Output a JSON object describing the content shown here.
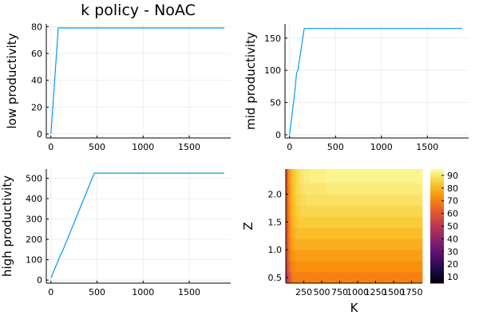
{
  "title": "k policy - NoAC",
  "colors": {
    "series": "#009af9"
  },
  "chart_data": [
    {
      "type": "line",
      "ylabel": "low productivity",
      "xlim": [
        -50,
        1950
      ],
      "ylim": [
        -3,
        82
      ],
      "xticks": [
        0,
        500,
        1000,
        1500
      ],
      "yticks": [
        0,
        20,
        40,
        60,
        80
      ],
      "grid": true,
      "series": [
        {
          "x": [
            0,
            80,
            1880
          ],
          "y": [
            0,
            79,
            79
          ]
        }
      ]
    },
    {
      "type": "line",
      "ylabel": "mid productivity",
      "xlim": [
        -50,
        1950
      ],
      "ylim": [
        -5,
        172
      ],
      "xticks": [
        0,
        500,
        1000,
        1500
      ],
      "yticks": [
        0,
        50,
        100,
        150
      ],
      "grid": true,
      "series": [
        {
          "x": [
            0,
            60,
            75,
            90,
            160,
            1880
          ],
          "y": [
            0,
            70,
            95,
            100,
            165,
            165
          ]
        }
      ]
    },
    {
      "type": "line",
      "ylabel": "high productivity",
      "xlim": [
        -50,
        1950
      ],
      "ylim": [
        -15,
        545
      ],
      "xticks": [
        0,
        500,
        1000,
        1500
      ],
      "yticks": [
        0,
        100,
        200,
        300,
        400,
        500
      ],
      "grid": true,
      "series": [
        {
          "x": [
            0,
            110,
            120,
            470,
            1880
          ],
          "y": [
            10,
            130,
            135,
            525,
            525
          ]
        }
      ]
    },
    {
      "type": "heatmap",
      "xlabel": "K",
      "ylabel": "Z",
      "xticks": [
        250,
        500,
        750,
        1000,
        1250,
        1500,
        1750
      ],
      "yticks": [
        0.5,
        1.0,
        1.5,
        2.0
      ],
      "ytick_labels": [
        "0.5",
        "1.0",
        "1.5",
        "2.0"
      ],
      "xlim": [
        0,
        1900
      ],
      "ylim": [
        0.4,
        2.45
      ],
      "colorbar": {
        "ticks": [
          10,
          20,
          30,
          40,
          50,
          60,
          70,
          80,
          90
        ],
        "range": [
          5,
          95
        ],
        "colormap": "inferno"
      },
      "x_edges": [
        0,
        36,
        72,
        108,
        144,
        180,
        216,
        252,
        288,
        324,
        360,
        560,
        1900
      ],
      "z_edges": [
        0.4,
        0.6,
        0.8,
        1.0,
        1.2,
        1.4,
        1.6,
        1.8,
        2.0,
        2.2,
        2.45
      ],
      "values": [
        [
          52,
          60,
          68,
          70,
          70,
          70,
          70,
          70,
          70,
          70,
          70,
          70
        ],
        [
          55,
          65,
          71,
          72,
          73,
          73,
          73,
          73,
          73,
          73,
          73,
          73
        ],
        [
          57,
          68,
          74,
          75,
          76,
          76,
          76,
          76,
          76,
          76,
          76,
          76
        ],
        [
          59,
          70,
          76,
          78,
          79,
          79,
          79,
          79,
          79,
          79,
          79,
          79
        ],
        [
          60,
          71,
          78,
          80,
          82,
          82,
          82,
          82,
          82,
          82,
          82,
          82
        ],
        [
          61,
          72,
          79,
          82,
          84,
          85,
          85,
          85,
          85,
          85,
          85,
          85
        ],
        [
          62,
          73,
          80,
          83,
          85,
          86,
          87,
          87,
          87,
          87,
          87,
          87
        ],
        [
          62,
          74,
          81,
          84,
          86,
          87,
          88,
          88,
          89,
          89,
          89,
          89
        ],
        [
          63,
          74,
          81,
          85,
          87,
          88,
          89,
          90,
          90,
          90,
          90,
          91
        ],
        [
          63,
          75,
          82,
          85,
          87,
          89,
          90,
          91,
          91,
          92,
          92,
          93
        ]
      ]
    }
  ]
}
